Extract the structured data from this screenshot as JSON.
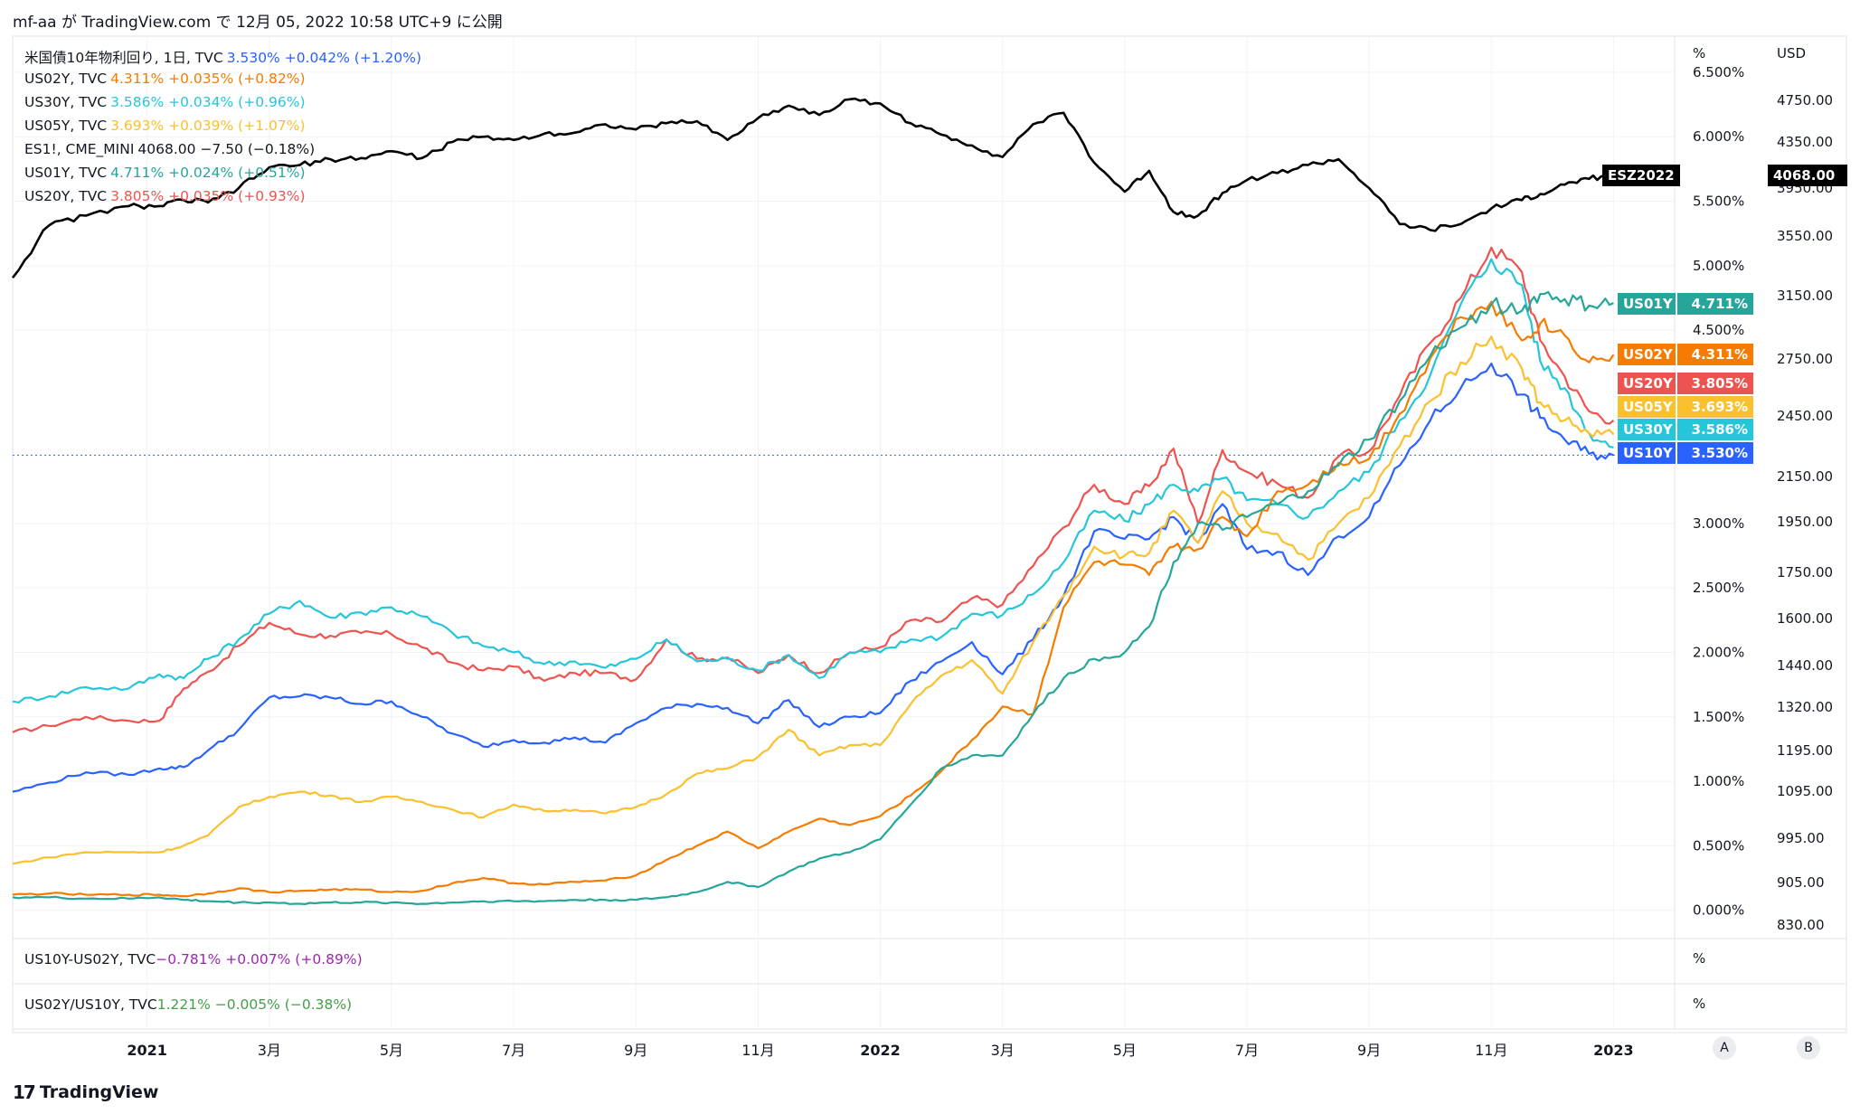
{
  "header": {
    "text": "mf-aa が TradingView.com で 12月 05, 2022 10:58 UTC+9 に公開"
  },
  "footer": {
    "brand": "TradingView"
  },
  "colors": {
    "US10Y": "#2962ff",
    "US02Y": "#f57c00",
    "US30Y": "#26c6da",
    "US05Y": "#fbc02d",
    "ES1": "#000000",
    "US01Y": "#26a69a",
    "US20Y": "#ef5350",
    "spread": "#9c27b0",
    "ratio": "#43a047"
  },
  "legend": [
    {
      "name": "米国債10年物利回り, 1日, TVC",
      "values": "3.530%  +0.042% (+1.20%)",
      "color": "#2962ff"
    },
    {
      "name": "US02Y, TVC",
      "values": "4.311%  +0.035% (+0.82%)",
      "color": "#f57c00"
    },
    {
      "name": "US30Y, TVC",
      "values": "3.586%  +0.034% (+0.96%)",
      "color": "#26c6da"
    },
    {
      "name": "US05Y, TVC",
      "values": "3.693%  +0.039% (+1.07%)",
      "color": "#fbc02d"
    },
    {
      "name": "ES1!, CME_MINI",
      "values": "4068.00  −7.50 (−0.18%)",
      "color": "#131722"
    },
    {
      "name": "US01Y, TVC",
      "values": "4.711%  +0.024% (+0.51%)",
      "color": "#26a69a"
    },
    {
      "name": "US20Y, TVC",
      "values": "3.805%  +0.035% (+0.93%)",
      "color": "#ef5350"
    }
  ],
  "sub_panes": [
    {
      "name": "US10Y-US02Y, TVC",
      "values": "−0.781%  +0.007% (+0.89%)",
      "color": "#9c27b0",
      "unit": "%"
    },
    {
      "name": "US02Y/US10Y, TVC",
      "values": "1.221%  −0.005% (−0.38%)",
      "color": "#43a047",
      "unit": "%"
    }
  ],
  "right_badges": [
    {
      "label": "US01Y",
      "value": "4.711%",
      "color": "#26a69a"
    },
    {
      "label": "US02Y",
      "value": "4.311%",
      "color": "#f57c00"
    },
    {
      "label": "US20Y",
      "value": "3.805%",
      "color": "#ef5350"
    },
    {
      "label": "US05Y",
      "value": "3.693%",
      "color": "#fbc02d"
    },
    {
      "label": "US30Y",
      "value": "3.586%",
      "color": "#26c6da"
    },
    {
      "label": "US10Y",
      "value": "3.530%",
      "color": "#2962ff"
    }
  ],
  "es_badge": {
    "label": "ESZ2022",
    "value": "4068.00"
  },
  "corner_buttons": [
    "A",
    "B"
  ],
  "chart_data": {
    "type": "line",
    "x_ticks": [
      "2021",
      "3月",
      "5月",
      "7月",
      "9月",
      "11月",
      "2022",
      "3月",
      "5月",
      "7月",
      "9月",
      "11月",
      "2023"
    ],
    "x_tick_months": [
      0,
      2,
      4,
      6,
      8,
      10,
      12,
      14,
      16,
      18,
      20,
      22,
      24
    ],
    "x_range_months": [
      -2.2,
      25.0
    ],
    "pct_axis": {
      "unit": "%",
      "range": [
        -0.22,
        6.78
      ],
      "ticks": [
        0,
        0.5,
        1,
        1.5,
        2,
        2.5,
        3,
        4.5,
        5,
        5.5,
        6,
        6.5
      ],
      "tick_labels": [
        "0.000%",
        "0.500%",
        "1.000%",
        "1.500%",
        "2.000%",
        "2.500%",
        "3.000%",
        "4.500%",
        "5.000%",
        "5.500%",
        "6.000%",
        "6.500%"
      ]
    },
    "usd_axis": {
      "unit": "USD",
      "ticks": [
        830,
        905,
        995,
        1095,
        1195,
        1320,
        1440,
        1600,
        1750,
        1950,
        2150,
        2450,
        2750,
        3150,
        3550,
        3950,
        4350,
        4750
      ],
      "tick_labels": [
        "830.00",
        "905.00",
        "995.00",
        "1095.00",
        "1195.00",
        "1320.00",
        "1440.00",
        "1600.00",
        "1750.00",
        "1950.00",
        "2150.00",
        "2450.00",
        "2750.00",
        "3150.00",
        "3550.00",
        "3950.00",
        "4350.00",
        "4750.00"
      ]
    },
    "series": [
      {
        "name": "US20Y",
        "axis": "pct",
        "color": "#ef5350",
        "x": [
          -2.2,
          -1.6,
          -1,
          -0.3,
          0.2,
          0.6,
          1,
          1.5,
          2,
          2.5,
          3,
          3.5,
          4,
          4.5,
          5,
          5.5,
          6,
          6.5,
          7,
          7.5,
          8,
          8.5,
          9,
          9.5,
          10,
          10.5,
          11,
          11.5,
          12,
          12.5,
          13,
          13.5,
          14,
          14.5,
          15,
          15.5,
          16,
          16.4,
          16.8,
          17.2,
          17.6,
          18,
          18.5,
          19,
          19.5,
          20,
          20.5,
          21,
          21.5,
          22,
          22.5,
          22.8,
          23.2,
          23.6,
          24
        ],
        "y": [
          1.38,
          1.43,
          1.5,
          1.47,
          1.47,
          1.72,
          1.85,
          2.05,
          2.23,
          2.14,
          2.13,
          2.15,
          2.14,
          2.04,
          1.92,
          1.86,
          1.89,
          1.78,
          1.84,
          1.84,
          1.79,
          2.1,
          1.95,
          1.96,
          1.84,
          1.98,
          1.84,
          2.0,
          2.04,
          2.25,
          2.24,
          2.42,
          2.37,
          2.67,
          2.97,
          3.3,
          3.15,
          3.29,
          3.58,
          3.0,
          3.57,
          3.4,
          3.31,
          3.2,
          3.52,
          3.56,
          3.99,
          4.4,
          4.75,
          5.14,
          4.95,
          4.42,
          4.14,
          3.87,
          3.8
        ]
      },
      {
        "name": "US30Y",
        "axis": "pct",
        "color": "#26c6da",
        "x": [
          -2.2,
          -1.6,
          -1,
          -0.3,
          0.2,
          0.6,
          1,
          1.5,
          2,
          2.5,
          3,
          3.5,
          4,
          4.5,
          5,
          5.5,
          6,
          6.5,
          7,
          7.5,
          8,
          8.5,
          9,
          9.5,
          10,
          10.5,
          11,
          11.5,
          12,
          12.5,
          13,
          13.5,
          14,
          14.5,
          15,
          15.5,
          16,
          16.4,
          16.8,
          17.2,
          17.6,
          18,
          18.5,
          19,
          19.5,
          20,
          20.5,
          21,
          21.5,
          22,
          22.5,
          22.8,
          23.2,
          23.6,
          24
        ],
        "y": [
          1.62,
          1.66,
          1.73,
          1.72,
          1.83,
          1.8,
          1.95,
          2.1,
          2.3,
          2.4,
          2.27,
          2.31,
          2.35,
          2.28,
          2.15,
          2.05,
          2.0,
          1.91,
          1.93,
          1.88,
          1.95,
          2.1,
          1.93,
          1.95,
          1.86,
          1.98,
          1.8,
          2.0,
          2.0,
          2.1,
          2.12,
          2.3,
          2.29,
          2.45,
          2.7,
          3.1,
          3.02,
          3.15,
          3.3,
          3.25,
          3.35,
          3.18,
          3.15,
          3.05,
          3.25,
          3.4,
          3.8,
          4.15,
          4.7,
          5.05,
          4.85,
          4.26,
          4.05,
          3.7,
          3.59
        ]
      },
      {
        "name": "US10Y",
        "axis": "pct",
        "color": "#2962ff",
        "x": [
          -2.2,
          -1.6,
          -1,
          -0.3,
          0.2,
          0.6,
          1,
          1.5,
          2,
          2.5,
          3,
          3.5,
          4,
          4.5,
          5,
          5.5,
          6,
          6.5,
          7,
          7.5,
          8,
          8.5,
          9,
          9.5,
          10,
          10.5,
          11,
          11.5,
          12,
          12.5,
          13,
          13.5,
          14,
          14.5,
          15,
          15.5,
          16,
          16.4,
          16.8,
          17.2,
          17.6,
          18,
          18.5,
          19,
          19.5,
          20,
          20.5,
          21,
          21.5,
          22,
          22.5,
          22.8,
          23.2,
          23.6,
          24
        ],
        "y": [
          0.92,
          0.99,
          1.07,
          1.05,
          1.1,
          1.11,
          1.24,
          1.4,
          1.65,
          1.66,
          1.65,
          1.6,
          1.62,
          1.5,
          1.37,
          1.27,
          1.32,
          1.3,
          1.34,
          1.3,
          1.45,
          1.57,
          1.6,
          1.57,
          1.45,
          1.63,
          1.42,
          1.5,
          1.53,
          1.78,
          1.93,
          2.08,
          1.83,
          2.1,
          2.44,
          2.94,
          2.88,
          2.88,
          3.05,
          2.85,
          3.15,
          2.8,
          2.78,
          2.6,
          2.9,
          3.05,
          3.45,
          3.8,
          4.05,
          4.24,
          4.0,
          3.82,
          3.65,
          3.54,
          3.53
        ]
      },
      {
        "name": "US05Y",
        "axis": "pct",
        "color": "#fbc02d",
        "x": [
          -2.2,
          -1.6,
          -1,
          -0.3,
          0.2,
          0.6,
          1,
          1.5,
          2,
          2.5,
          3,
          3.5,
          4,
          4.5,
          5,
          5.5,
          6,
          6.5,
          7,
          7.5,
          8,
          8.5,
          9,
          9.5,
          10,
          10.5,
          11,
          11.5,
          12,
          12.5,
          13,
          13.5,
          14,
          14.5,
          15,
          15.5,
          16,
          16.4,
          16.8,
          17.2,
          17.6,
          18,
          18.5,
          19,
          19.5,
          20,
          20.5,
          21,
          21.5,
          22,
          22.5,
          22.8,
          23.2,
          23.6,
          24
        ],
        "y": [
          0.36,
          0.41,
          0.45,
          0.45,
          0.45,
          0.5,
          0.58,
          0.8,
          0.88,
          0.92,
          0.89,
          0.84,
          0.88,
          0.84,
          0.78,
          0.72,
          0.82,
          0.77,
          0.78,
          0.75,
          0.8,
          0.9,
          1.06,
          1.1,
          1.19,
          1.4,
          1.2,
          1.28,
          1.28,
          1.6,
          1.82,
          1.94,
          1.68,
          2.08,
          2.44,
          2.82,
          2.75,
          2.77,
          3.1,
          2.85,
          3.25,
          3.0,
          2.92,
          2.72,
          3.0,
          3.2,
          3.6,
          3.95,
          4.25,
          4.45,
          4.2,
          3.94,
          3.8,
          3.7,
          3.69
        ]
      },
      {
        "name": "US02Y",
        "axis": "pct",
        "color": "#f57c00",
        "x": [
          -2.2,
          -1.6,
          -1,
          -0.3,
          0.2,
          0.6,
          1,
          1.5,
          2,
          2.5,
          3,
          3.5,
          4,
          4.5,
          5,
          5.5,
          6,
          6.5,
          7,
          7.5,
          8,
          8.5,
          9,
          9.5,
          10,
          10.5,
          11,
          11.5,
          12,
          12.5,
          13,
          13.5,
          14,
          14.5,
          15,
          15.5,
          16,
          16.4,
          16.8,
          17.2,
          17.6,
          18,
          18.5,
          19,
          19.5,
          20,
          20.5,
          21,
          21.5,
          22,
          22.5,
          22.8,
          23.2,
          23.6,
          24
        ],
        "y": [
          0.12,
          0.13,
          0.12,
          0.12,
          0.12,
          0.11,
          0.13,
          0.17,
          0.14,
          0.15,
          0.16,
          0.16,
          0.14,
          0.15,
          0.21,
          0.25,
          0.21,
          0.2,
          0.22,
          0.23,
          0.27,
          0.39,
          0.5,
          0.61,
          0.48,
          0.61,
          0.71,
          0.66,
          0.73,
          0.89,
          1.08,
          1.32,
          1.58,
          1.52,
          2.35,
          2.7,
          2.68,
          2.6,
          2.82,
          2.8,
          3.05,
          2.9,
          3.25,
          3.3,
          3.47,
          3.5,
          3.85,
          4.28,
          4.6,
          4.72,
          4.42,
          4.55,
          4.46,
          4.25,
          4.31
        ]
      },
      {
        "name": "US01Y",
        "axis": "pct",
        "color": "#26a69a",
        "x": [
          -2.2,
          -1.6,
          -1,
          -0.3,
          0.2,
          0.6,
          1,
          1.5,
          2,
          2.5,
          3,
          3.5,
          4,
          4.5,
          5,
          5.5,
          6,
          6.5,
          7,
          7.5,
          8,
          8.5,
          9,
          9.5,
          10,
          10.5,
          11,
          11.5,
          12,
          12.5,
          13,
          13.5,
          14,
          14.5,
          15,
          15.5,
          16,
          16.4,
          16.8,
          17.2,
          17.6,
          18,
          18.5,
          19,
          19.5,
          20,
          20.5,
          21,
          21.5,
          22,
          22.5,
          22.8,
          23.2,
          23.6,
          24
        ],
        "y": [
          0.1,
          0.1,
          0.09,
          0.09,
          0.1,
          0.08,
          0.07,
          0.06,
          0.06,
          0.05,
          0.06,
          0.06,
          0.06,
          0.05,
          0.06,
          0.07,
          0.07,
          0.07,
          0.08,
          0.08,
          0.08,
          0.1,
          0.14,
          0.22,
          0.18,
          0.3,
          0.4,
          0.45,
          0.55,
          0.82,
          1.1,
          1.2,
          1.2,
          1.52,
          1.8,
          1.95,
          2.0,
          2.2,
          2.7,
          3.0,
          2.95,
          3.05,
          3.15,
          3.25,
          3.45,
          3.65,
          3.95,
          4.3,
          4.52,
          4.7,
          4.65,
          4.78,
          4.74,
          4.69,
          4.71
        ]
      },
      {
        "name": "ESZ2022",
        "axis": "usd",
        "color": "#000000",
        "x": [
          -2.2,
          -1.6,
          -1,
          -0.3,
          0.2,
          0.6,
          1,
          1.5,
          2,
          2.5,
          3,
          3.5,
          4,
          4.5,
          5,
          5.5,
          6,
          6.5,
          7,
          7.5,
          8,
          8.5,
          9,
          9.5,
          10,
          10.5,
          11,
          11.5,
          12,
          12.5,
          13,
          13.5,
          14,
          14.5,
          15,
          15.5,
          16,
          16.4,
          16.8,
          17.2,
          17.6,
          18,
          18.5,
          19,
          19.5,
          20,
          20.5,
          21,
          21.5,
          22,
          22.5,
          22.8,
          23.2,
          23.6,
          24
        ],
        "y": [
          3270,
          3640,
          3720,
          3800,
          3800,
          3850,
          3830,
          3950,
          4130,
          4150,
          4200,
          4210,
          4270,
          4210,
          4350,
          4400,
          4370,
          4430,
          4440,
          4520,
          4470,
          4530,
          4550,
          4370,
          4580,
          4700,
          4610,
          4760,
          4720,
          4530,
          4420,
          4320,
          4220,
          4520,
          4630,
          4170,
          3920,
          4100,
          3750,
          3720,
          3910,
          4020,
          4080,
          4150,
          4200,
          3950,
          3650,
          3600,
          3650,
          3780,
          3850,
          3900,
          3980,
          4030,
          4068
        ]
      }
    ]
  }
}
